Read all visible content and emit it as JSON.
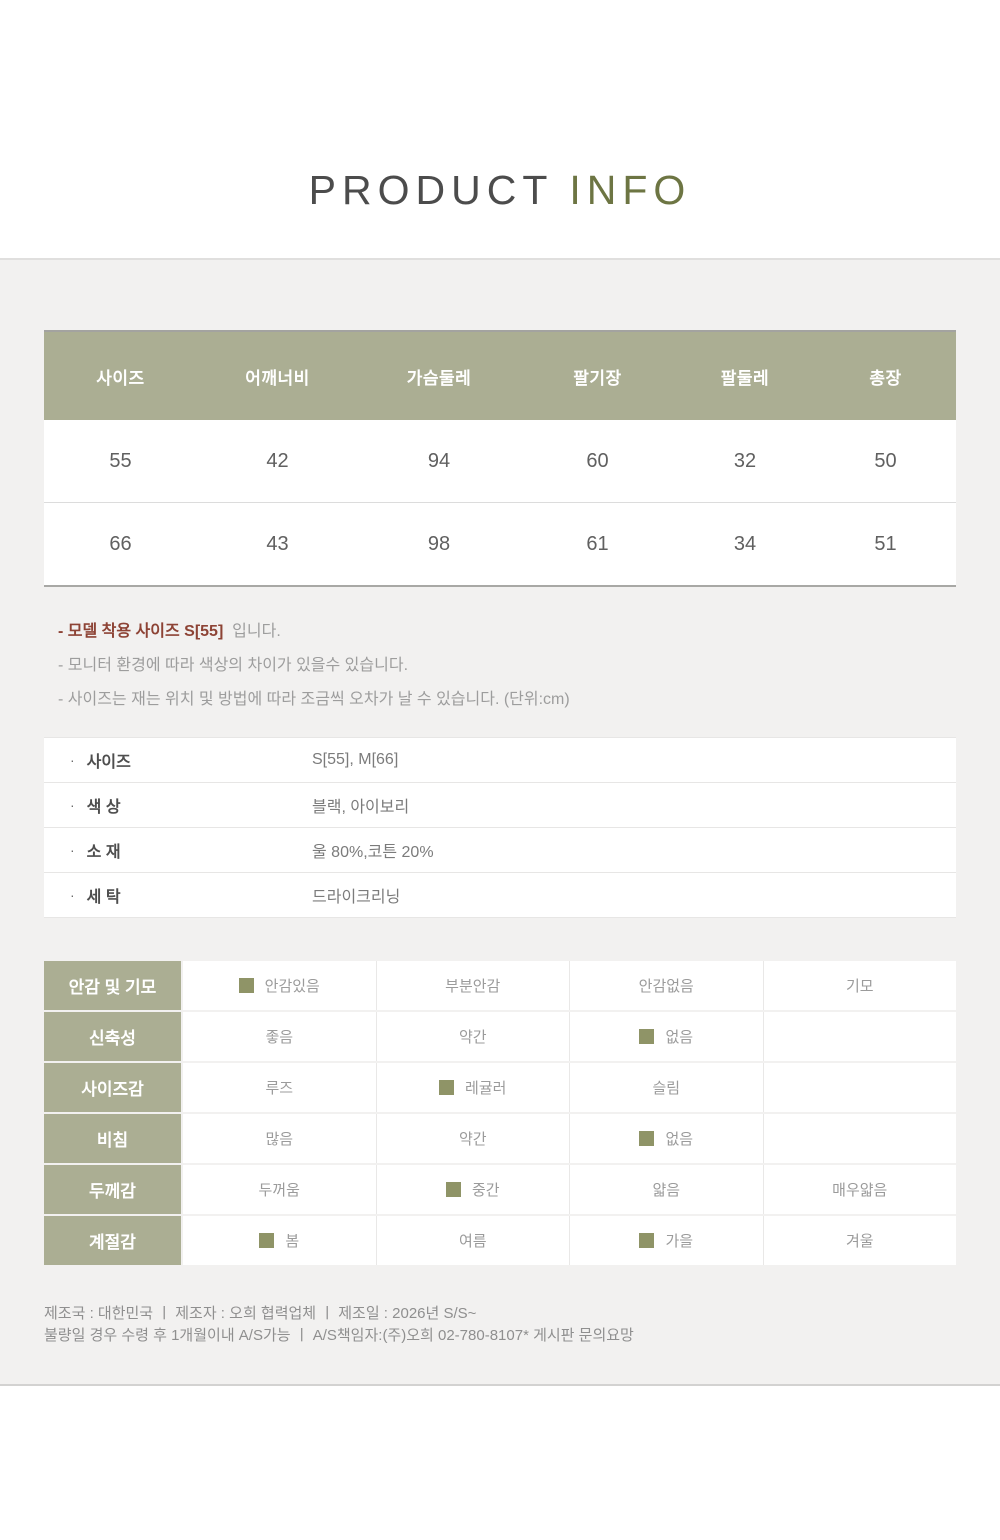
{
  "title": {
    "part1": "PRODUCT",
    "part2": "INFO"
  },
  "colors": {
    "accent_olive": "#abae93",
    "checked_square": "#8f9467",
    "title_accent": "#6d7543",
    "note_highlight": "#8d4335",
    "panel_bg": "#f2f1f0"
  },
  "size_table": {
    "headers": [
      "사이즈",
      "어깨너비",
      "가슴둘레",
      "팔기장",
      "팔둘레",
      "총장"
    ],
    "rows": [
      [
        "55",
        "42",
        "94",
        "60",
        "32",
        "50"
      ],
      [
        "66",
        "43",
        "98",
        "61",
        "34",
        "51"
      ]
    ]
  },
  "notes": {
    "line1_highlight": "- 모델 착용 사이즈 S[55]",
    "line1_suffix": "입니다.",
    "line2": "- 모니터 환경에 따라 색상의 차이가 있을수 있습니다.",
    "line3": "- 사이즈는 재는 위치 및 방법에 따라 조금씩 오차가 날 수 있습니다. (단위:cm)"
  },
  "info": {
    "bullet": "·",
    "rows": [
      {
        "label": "사이즈",
        "value": "S[55], M[66]"
      },
      {
        "label": "색 상",
        "value": "블랙, 아이보리"
      },
      {
        "label": "소 재",
        "value": "울 80%,코튼 20%"
      },
      {
        "label": "세 탁",
        "value": "드라이크리닝"
      }
    ]
  },
  "attributes": {
    "rows": [
      {
        "label": "안감 및 기모",
        "options": [
          {
            "label": "안감있음",
            "checked": "true"
          },
          {
            "label": "부분안감",
            "checked": "false"
          },
          {
            "label": "안감없음",
            "checked": "false"
          },
          {
            "label": "기모",
            "checked": "false"
          }
        ]
      },
      {
        "label": "신축성",
        "options": [
          {
            "label": "좋음",
            "checked": "false"
          },
          {
            "label": "약간",
            "checked": "false"
          },
          {
            "label": "없음",
            "checked": "true"
          },
          {
            "label": "",
            "checked": "false"
          }
        ]
      },
      {
        "label": "사이즈감",
        "options": [
          {
            "label": "루즈",
            "checked": "false"
          },
          {
            "label": "레귤러",
            "checked": "true"
          },
          {
            "label": "슬림",
            "checked": "false"
          },
          {
            "label": "",
            "checked": "false"
          }
        ]
      },
      {
        "label": "비침",
        "options": [
          {
            "label": "많음",
            "checked": "false"
          },
          {
            "label": "약간",
            "checked": "false"
          },
          {
            "label": "없음",
            "checked": "true"
          },
          {
            "label": "",
            "checked": "false"
          }
        ]
      },
      {
        "label": "두께감",
        "options": [
          {
            "label": "두꺼움",
            "checked": "false"
          },
          {
            "label": "중간",
            "checked": "true"
          },
          {
            "label": "얇음",
            "checked": "false"
          },
          {
            "label": "매우얇음",
            "checked": "false"
          }
        ]
      },
      {
        "label": "계절감",
        "options": [
          {
            "label": "봄",
            "checked": "true"
          },
          {
            "label": "여름",
            "checked": "false"
          },
          {
            "label": "가을",
            "checked": "true"
          },
          {
            "label": "겨울",
            "checked": "false"
          }
        ]
      }
    ]
  },
  "footer": {
    "line1": "제조국 :  대한민국  ㅣ  제조자 :  오희 협력업체  ㅣ  제조일 : 2026년 S/S~",
    "line2": "불량일 경우 수령 후 1개월이내 A/S가능  ㅣ  A/S책임자:(주)오희 02-780-8107* 게시판 문의요망"
  }
}
